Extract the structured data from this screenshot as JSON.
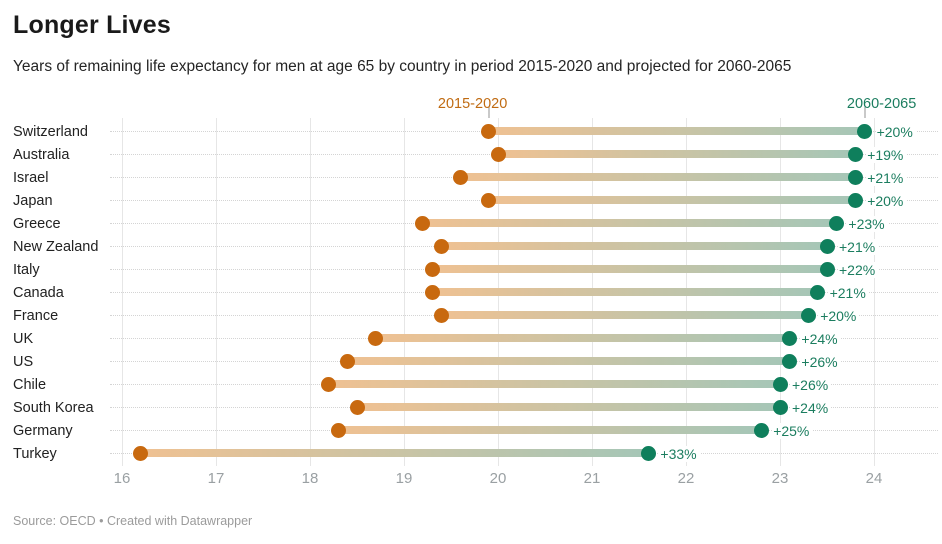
{
  "header": {
    "title": "Longer Lives",
    "subtitle": "Years of remaining life expectancy for men at age 65 by country in period 2015-2020 and projected for 2060-2065"
  },
  "footer": {
    "source": "Source: OECD • Created with Datawrapper"
  },
  "colors": {
    "period1_accent": "#c06b12",
    "period1_dot": "#c8690f",
    "period2_accent": "#1b7d5f",
    "period2_dot": "#0f7f5c",
    "bar_start": "#efc192",
    "bar_end": "#a5c6b7",
    "gridline": "#e6e6e6",
    "axis_text": "#9aa0a3",
    "leader_dots": "#d4d4d4"
  },
  "chart_data": {
    "type": "range-dumbbell",
    "title": "Longer Lives",
    "subtitle": "Years of remaining life expectancy for men at age 65 by country in period 2015-2020 and projected for 2060-2065",
    "legend": [
      {
        "label": "2015-2020",
        "color": "#c06b12"
      },
      {
        "label": "2060-2065",
        "color": "#1b7d5f"
      }
    ],
    "x_axis": {
      "min": 16,
      "max": 24,
      "ticks": [
        16,
        17,
        18,
        19,
        20,
        21,
        22,
        23,
        24
      ],
      "grid": true
    },
    "series": [
      {
        "name": "2015-2020",
        "values": [
          19.9,
          20.0,
          19.6,
          19.9,
          19.2,
          19.4,
          19.3,
          19.3,
          19.4,
          18.7,
          18.4,
          18.2,
          18.5,
          18.3,
          16.2
        ]
      },
      {
        "name": "2060-2065",
        "values": [
          23.9,
          23.8,
          23.8,
          23.8,
          23.6,
          23.5,
          23.5,
          23.4,
          23.3,
          23.1,
          23.1,
          23.0,
          23.0,
          22.8,
          21.6
        ]
      }
    ],
    "rows": [
      {
        "country": "Switzerland",
        "start": 19.9,
        "end": 23.9,
        "change": "+20%"
      },
      {
        "country": "Australia",
        "start": 20.0,
        "end": 23.8,
        "change": "+19%"
      },
      {
        "country": "Israel",
        "start": 19.6,
        "end": 23.8,
        "change": "+21%"
      },
      {
        "country": "Japan",
        "start": 19.9,
        "end": 23.8,
        "change": "+20%"
      },
      {
        "country": "Greece",
        "start": 19.2,
        "end": 23.6,
        "change": "+23%"
      },
      {
        "country": "New Zealand",
        "start": 19.4,
        "end": 23.5,
        "change": "+21%"
      },
      {
        "country": "Italy",
        "start": 19.3,
        "end": 23.5,
        "change": "+22%"
      },
      {
        "country": "Canada",
        "start": 19.3,
        "end": 23.4,
        "change": "+21%"
      },
      {
        "country": "France",
        "start": 19.4,
        "end": 23.3,
        "change": "+20%"
      },
      {
        "country": "UK",
        "start": 18.7,
        "end": 23.1,
        "change": "+24%"
      },
      {
        "country": "US",
        "start": 18.4,
        "end": 23.1,
        "change": "+26%"
      },
      {
        "country": "Chile",
        "start": 18.2,
        "end": 23.0,
        "change": "+26%"
      },
      {
        "country": "South Korea",
        "start": 18.5,
        "end": 23.0,
        "change": "+24%"
      },
      {
        "country": "Germany",
        "start": 18.3,
        "end": 22.8,
        "change": "+25%"
      },
      {
        "country": "Turkey",
        "start": 16.2,
        "end": 21.6,
        "change": "+33%"
      }
    ]
  }
}
